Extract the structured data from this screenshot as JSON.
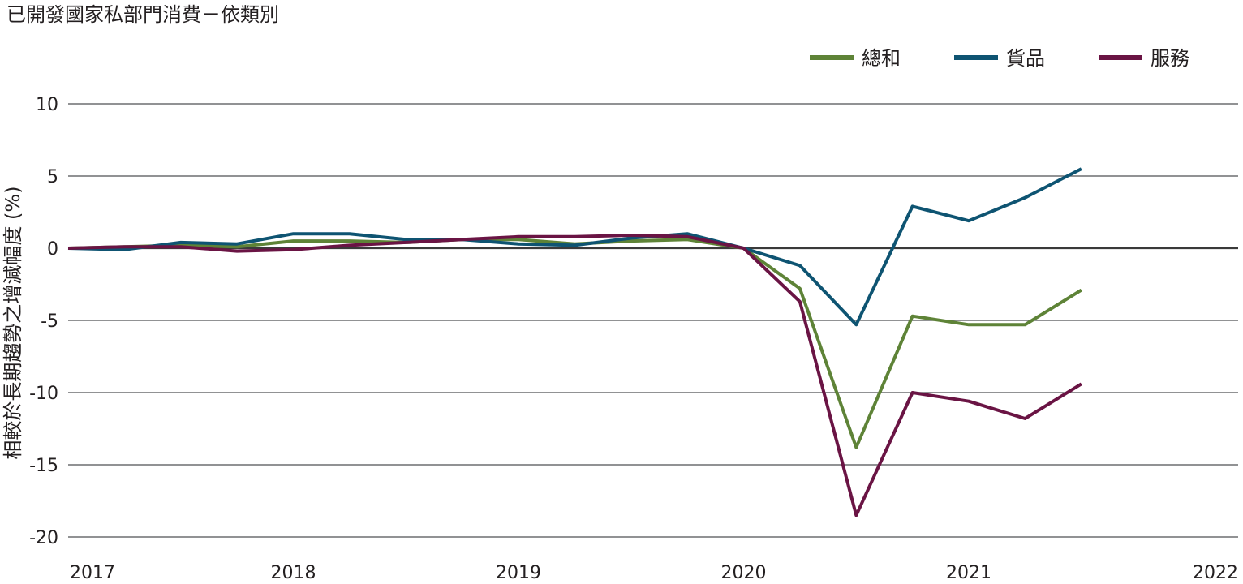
{
  "title": "已開發國家私部門消費－依類別",
  "chart_data": {
    "type": "line",
    "title": "已開發國家私部門消費－依類別",
    "xlabel": "",
    "ylabel": "相較於長期趨勢之增減幅度 (%)",
    "x_tick_labels": [
      "2017",
      "2018",
      "2019",
      "2020",
      "2021",
      "2022"
    ],
    "y_ticks": [
      10,
      5,
      0,
      -5,
      -10,
      -15,
      -20
    ],
    "y_tick_labels": [
      "10",
      "5",
      "0",
      "-5",
      "-10",
      "-15",
      "-20"
    ],
    "ylim": [
      -20,
      10
    ],
    "xlim": [
      2017,
      2022
    ],
    "grid": true,
    "legend_position": "top-right",
    "x": [
      2017.0,
      2017.25,
      2017.5,
      2017.75,
      2018.0,
      2018.25,
      2018.5,
      2018.75,
      2019.0,
      2019.25,
      2019.5,
      2019.75,
      2020.0,
      2020.25,
      2020.5,
      2020.75,
      2021.0,
      2021.25,
      2021.5
    ],
    "series": [
      {
        "name": "總和",
        "color": "#5e8337",
        "values": [
          0.0,
          0.1,
          0.2,
          0.1,
          0.5,
          0.5,
          0.4,
          0.6,
          0.6,
          0.3,
          0.5,
          0.6,
          0.0,
          -2.8,
          -13.8,
          -4.7,
          -5.3,
          -5.3,
          -2.9
        ]
      },
      {
        "name": "貨品",
        "color": "#0e5472",
        "values": [
          0.0,
          -0.1,
          0.4,
          0.3,
          1.0,
          1.0,
          0.6,
          0.6,
          0.3,
          0.2,
          0.7,
          1.0,
          0.0,
          -1.2,
          -5.3,
          2.9,
          1.9,
          3.5,
          5.5
        ]
      },
      {
        "name": "服務",
        "color": "#6a1444",
        "values": [
          0.0,
          0.1,
          0.1,
          -0.2,
          -0.1,
          0.2,
          0.4,
          0.6,
          0.8,
          0.8,
          0.9,
          0.8,
          0.0,
          -3.7,
          -18.5,
          -10.0,
          -10.6,
          -11.8,
          -9.4
        ]
      }
    ]
  }
}
